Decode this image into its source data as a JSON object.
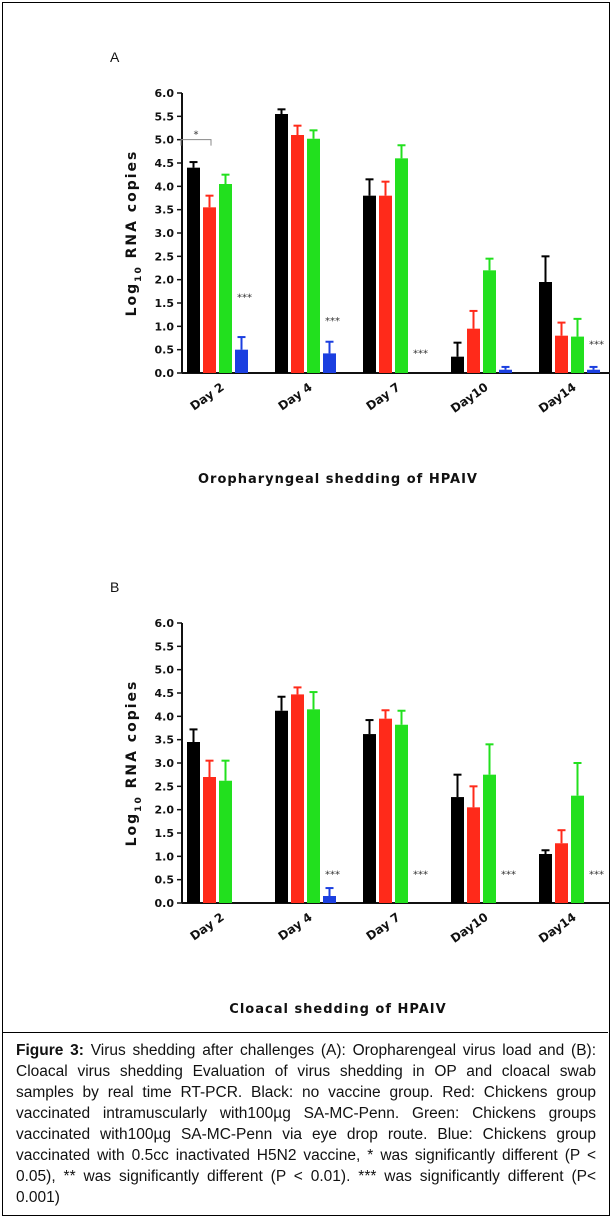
{
  "chart_data": [
    {
      "type": "bar",
      "panel_label": "A",
      "title": "",
      "xlabel": "Oropharyngeal shedding of HPAIV",
      "ylabel_main": "Log",
      "ylabel_sub": "10",
      "ylabel_rest": " RNA copies",
      "ylim": [
        0,
        6.0
      ],
      "yticks": [
        "0.0",
        "0.5",
        "1.0",
        "1.5",
        "2.0",
        "2.5",
        "3.0",
        "3.5",
        "4.0",
        "4.5",
        "5.0",
        "5.5",
        "6.0"
      ],
      "categories": [
        "Day 2",
        "Day 4",
        "Day 7",
        "Day10",
        "Day14"
      ],
      "series": [
        {
          "color": "#000000",
          "values": [
            4.4,
            5.55,
            3.8,
            0.35,
            1.95
          ],
          "errors": [
            0.12,
            0.1,
            0.35,
            0.3,
            0.55
          ]
        },
        {
          "color": "#ff2a1a",
          "values": [
            3.55,
            5.1,
            3.8,
            0.95,
            0.8
          ],
          "errors": [
            0.25,
            0.2,
            0.3,
            0.38,
            0.28
          ]
        },
        {
          "color": "#22e01e",
          "values": [
            4.05,
            5.02,
            4.6,
            2.2,
            0.78
          ],
          "errors": [
            0.2,
            0.18,
            0.28,
            0.25,
            0.38
          ]
        },
        {
          "color": "#1b3fe0",
          "values": [
            0.5,
            0.42,
            0.0,
            0.07,
            0.07
          ],
          "errors": [
            0.27,
            0.25,
            0.0,
            0.06,
            0.06
          ]
        }
      ],
      "annotations": [
        {
          "text": "*",
          "category": 0,
          "type": "bracket"
        },
        {
          "text": "***",
          "category": 0,
          "y": 1.55
        },
        {
          "text": "***",
          "category": 1,
          "y": 1.05
        },
        {
          "text": "***",
          "category": 2,
          "y": 0.35
        },
        {
          "text": "***",
          "category": 4,
          "y": 0.55
        }
      ]
    },
    {
      "type": "bar",
      "panel_label": "B",
      "title": "",
      "xlabel": "Cloacal shedding of HPAIV",
      "ylabel_main": "Log",
      "ylabel_sub": "10",
      "ylabel_rest": " RNA copies",
      "ylim": [
        0,
        6.0
      ],
      "yticks": [
        "0.0",
        "0.5",
        "1.0",
        "1.5",
        "2.0",
        "2.5",
        "3.0",
        "3.5",
        "4.0",
        "4.5",
        "5.0",
        "5.5",
        "6.0"
      ],
      "categories": [
        "Day 2",
        "Day 4",
        "Day 7",
        "Day10",
        "Day14"
      ],
      "series": [
        {
          "color": "#000000",
          "values": [
            3.45,
            4.12,
            3.62,
            2.27,
            1.05
          ],
          "errors": [
            0.27,
            0.3,
            0.3,
            0.48,
            0.08
          ]
        },
        {
          "color": "#ff2a1a",
          "values": [
            2.7,
            4.47,
            3.95,
            2.05,
            1.28
          ],
          "errors": [
            0.35,
            0.15,
            0.18,
            0.45,
            0.28
          ]
        },
        {
          "color": "#22e01e",
          "values": [
            2.62,
            4.15,
            3.82,
            2.75,
            2.3
          ],
          "errors": [
            0.43,
            0.37,
            0.3,
            0.65,
            0.7
          ]
        },
        {
          "color": "#1b3fe0",
          "values": [
            0.0,
            0.15,
            0.0,
            0.0,
            0.0
          ],
          "errors": [
            0.0,
            0.17,
            0.0,
            0.0,
            0.0
          ]
        }
      ],
      "annotations": [
        {
          "text": "***",
          "category": 1,
          "y": 0.55
        },
        {
          "text": "***",
          "category": 2,
          "y": 0.55
        },
        {
          "text": "***",
          "category": 3,
          "y": 0.55
        },
        {
          "text": "***",
          "category": 4,
          "y": 0.55
        }
      ]
    }
  ],
  "caption": {
    "label": "Figure 3:",
    "text": " Virus shedding after challenges (A): Oropharengeal virus load and (B): Cloacal virus shedding Evaluation of virus shedding in OP and cloacal swab samples by real time RT-PCR. Black: no vaccine group. Red: Chickens group vaccinated intramuscularly with100µg SA-MC-Penn. Green: Chickens groups vaccinated with100µg SA-MC-Penn via eye drop route. Blue: Chickens group vaccinated with 0.5cc inactivated H5N2 vaccine, * was significantly different (P < 0.05), ** was significantly different (P < 0.01). *** was significantly different (P< 0.001)"
  }
}
